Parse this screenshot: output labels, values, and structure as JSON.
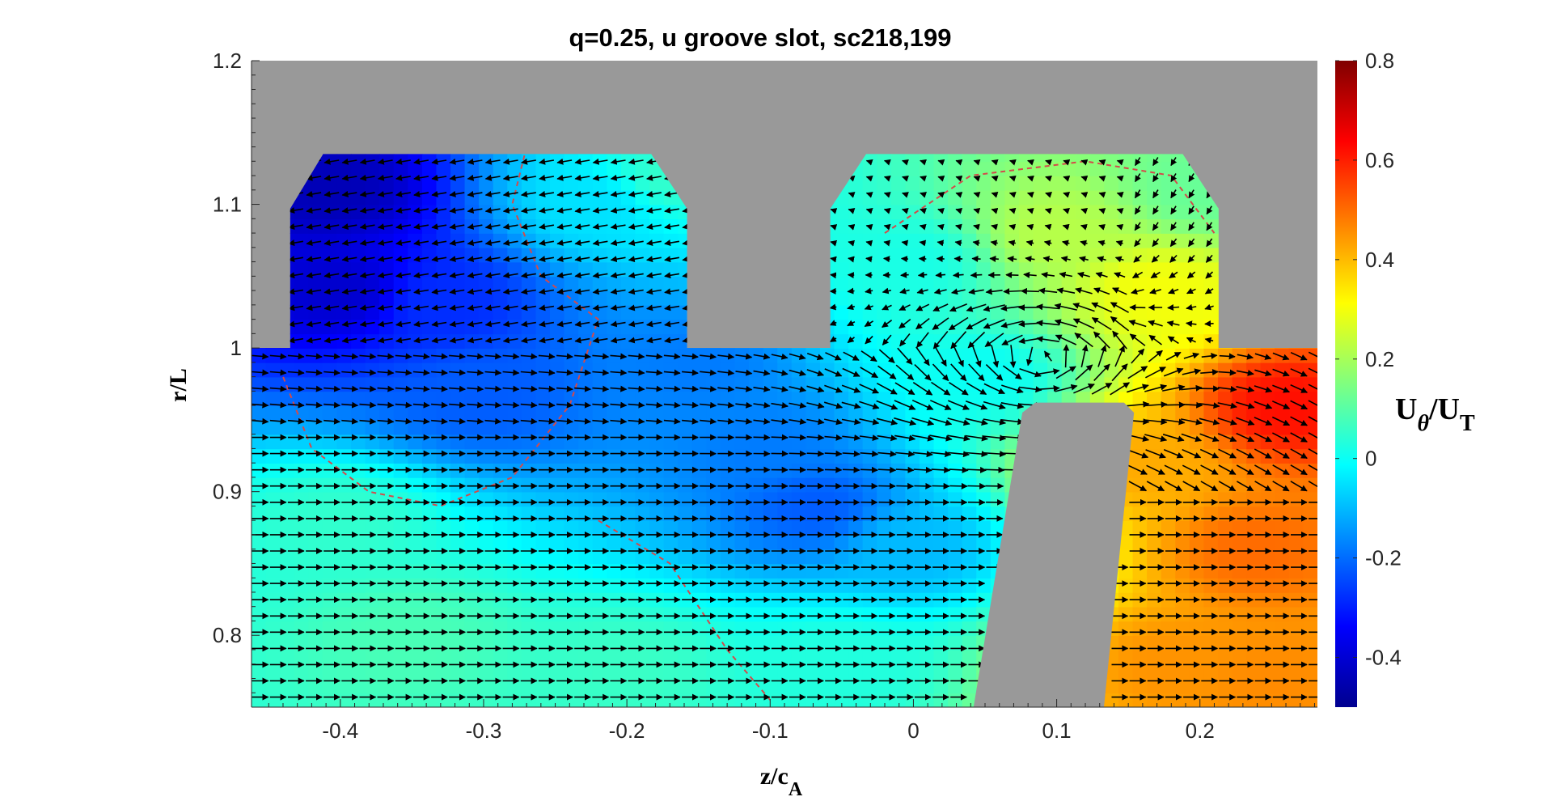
{
  "chart_data": {
    "type": "heatmap",
    "title": "q=0.25, u groove slot, sc218,199",
    "xlabel": {
      "main": "z/c",
      "sub": "A"
    },
    "ylabel": "r/L",
    "xlim": [
      -0.462,
      0.282
    ],
    "ylim": [
      0.75,
      1.2
    ],
    "x_ticks": [
      {
        "value": -0.4,
        "label": "-0.4"
      },
      {
        "value": -0.3,
        "label": "-0.3"
      },
      {
        "value": -0.2,
        "label": "-0.2"
      },
      {
        "value": -0.1,
        "label": "-0.1"
      },
      {
        "value": 0,
        "label": "0"
      },
      {
        "value": 0.1,
        "label": "0.1"
      },
      {
        "value": 0.2,
        "label": "0.2"
      }
    ],
    "y_ticks": [
      {
        "value": 0.8,
        "label": "0.8"
      },
      {
        "value": 0.9,
        "label": "0.9"
      },
      {
        "value": 1.0,
        "label": "1"
      },
      {
        "value": 1.1,
        "label": "1.1"
      },
      {
        "value": 1.2,
        "label": "1.2"
      }
    ],
    "colorbar": {
      "label": {
        "main": "U",
        "sub1": "θ",
        "mid": "/U",
        "sub2": "T"
      },
      "range": [
        -0.5,
        0.8
      ],
      "colormap": "jet",
      "ticks": [
        {
          "value": 0.8,
          "label": "0.8"
        },
        {
          "value": 0.6,
          "label": "0.6"
        },
        {
          "value": 0.4,
          "label": "0.4"
        },
        {
          "value": 0.2,
          "label": "0.2"
        },
        {
          "value": 0,
          "label": "0"
        },
        {
          "value": -0.2,
          "label": "-0.2"
        },
        {
          "value": -0.4,
          "label": "-0.4"
        }
      ]
    },
    "solid_color": "#999999",
    "groove_regions": [
      {
        "name": "upstream-groove",
        "polygon": [
          [
            -0.435,
            1.0
          ],
          [
            -0.435,
            1.097
          ],
          [
            -0.412,
            1.135
          ],
          [
            -0.183,
            1.135
          ],
          [
            -0.158,
            1.097
          ],
          [
            -0.158,
            1.0
          ]
        ]
      },
      {
        "name": "downstream-groove",
        "polygon": [
          [
            -0.058,
            1.0
          ],
          [
            -0.058,
            1.097
          ],
          [
            -0.033,
            1.135
          ],
          [
            0.188,
            1.135
          ],
          [
            0.213,
            1.097
          ],
          [
            0.213,
            1.0
          ]
        ]
      }
    ],
    "blade_polygon": [
      [
        0.042,
        0.75
      ],
      [
        0.076,
        0.955
      ],
      [
        0.085,
        0.962
      ],
      [
        0.147,
        0.962
      ],
      [
        0.154,
        0.955
      ],
      [
        0.133,
        0.75
      ]
    ],
    "field_keypoints": [
      {
        "z": -0.405,
        "r": 1.11,
        "u": -0.43
      },
      {
        "z": -0.4,
        "r": 1.04,
        "u": -0.4
      },
      {
        "z": -0.33,
        "r": 1.03,
        "u": -0.28
      },
      {
        "z": -0.22,
        "r": 1.1,
        "u": -0.05
      },
      {
        "z": -0.17,
        "r": 1.12,
        "u": 0.05
      },
      {
        "z": -0.3,
        "r": 0.97,
        "u": -0.22
      },
      {
        "z": -0.15,
        "r": 0.99,
        "u": -0.18
      },
      {
        "z": -0.1,
        "r": 0.93,
        "u": -0.18
      },
      {
        "z": -0.07,
        "r": 0.89,
        "u": -0.22
      },
      {
        "z": 0.0,
        "r": 0.86,
        "u": -0.1
      },
      {
        "z": -0.4,
        "r": 0.88,
        "u": 0.05
      },
      {
        "z": -0.35,
        "r": 0.8,
        "u": 0.08
      },
      {
        "z": -0.2,
        "r": 0.78,
        "u": 0.06
      },
      {
        "z": -0.05,
        "r": 0.78,
        "u": 0.03
      },
      {
        "z": 0.0,
        "r": 1.06,
        "u": 0.02
      },
      {
        "z": 0.1,
        "r": 1.08,
        "u": 0.22
      },
      {
        "z": 0.17,
        "r": 1.04,
        "u": 0.3
      },
      {
        "z": 0.2,
        "r": 1.11,
        "u": 0.12
      },
      {
        "z": 0.05,
        "r": 0.98,
        "u": 0.0
      },
      {
        "z": 0.16,
        "r": 0.92,
        "u": 0.42
      },
      {
        "z": 0.26,
        "r": 0.96,
        "u": 0.62
      },
      {
        "z": 0.24,
        "r": 0.86,
        "u": 0.5
      },
      {
        "z": 0.18,
        "r": 0.78,
        "u": 0.45
      },
      {
        "z": 0.25,
        "r": 0.77,
        "u": 0.46
      }
    ],
    "zero_contour": [
      {
        "z": -0.27,
        "r": 1.14
      },
      {
        "z": -0.28,
        "r": 1.1
      },
      {
        "z": -0.26,
        "r": 1.05
      },
      {
        "z": -0.22,
        "r": 1.02
      },
      {
        "z": -0.24,
        "r": 0.96
      },
      {
        "z": -0.28,
        "r": 0.91
      },
      {
        "z": -0.33,
        "r": 0.89
      },
      {
        "z": -0.38,
        "r": 0.9
      },
      {
        "z": -0.42,
        "r": 0.93
      },
      {
        "z": -0.44,
        "r": 0.98
      }
    ],
    "zero_contour_2": [
      {
        "z": -0.22,
        "r": 0.88
      },
      {
        "z": -0.17,
        "r": 0.85
      },
      {
        "z": -0.15,
        "r": 0.82
      },
      {
        "z": -0.13,
        "r": 0.79
      },
      {
        "z": -0.1,
        "r": 0.755
      }
    ],
    "zero_contour_3": [
      {
        "z": -0.02,
        "r": 1.08
      },
      {
        "z": 0.04,
        "r": 1.12
      },
      {
        "z": 0.12,
        "r": 1.13
      },
      {
        "z": 0.18,
        "r": 1.12
      },
      {
        "z": 0.21,
        "r": 1.08
      }
    ],
    "vortex_center": {
      "z": 0.09,
      "r": 0.99
    },
    "contour_color": "#d44a4a"
  }
}
